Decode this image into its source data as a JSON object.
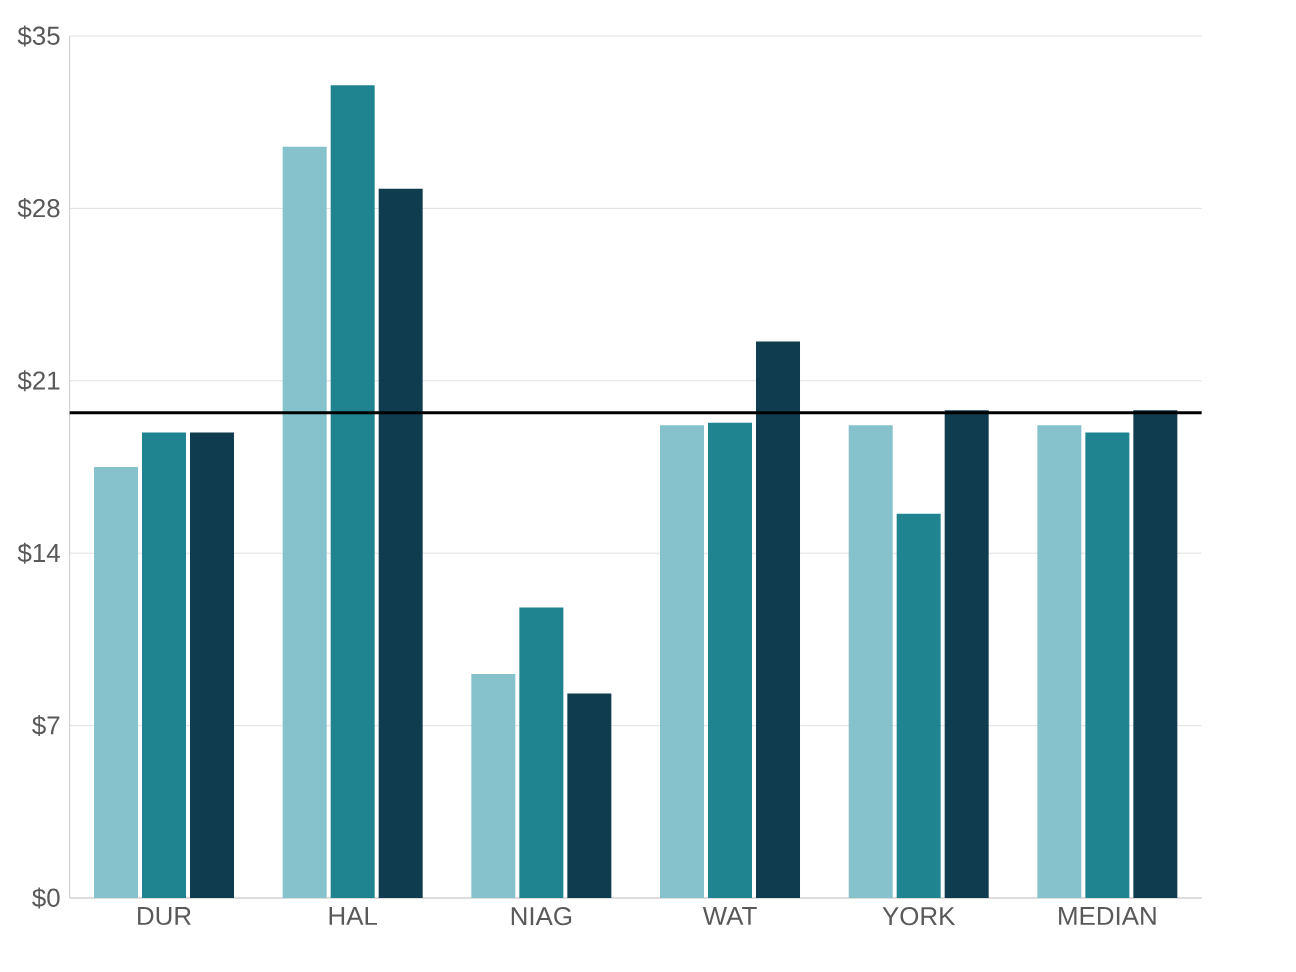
{
  "chart_data": {
    "type": "bar",
    "categories": [
      "DUR",
      "HAL",
      "NIAG",
      "WAT",
      "YORK",
      "MEDIAN"
    ],
    "series": [
      {
        "color": "#85c2cc",
        "values": [
          17.5,
          30.5,
          9.1,
          19.2,
          19.2,
          19.2
        ]
      },
      {
        "color": "#1f8490",
        "values": [
          18.9,
          33.0,
          11.8,
          19.3,
          15.6,
          18.9
        ]
      },
      {
        "color": "#0f3d4f",
        "values": [
          18.9,
          28.8,
          8.3,
          22.6,
          19.8,
          19.8
        ]
      }
    ],
    "ylim": [
      0,
      35
    ],
    "yticks": [
      {
        "value": 0,
        "label": "$0"
      },
      {
        "value": 7,
        "label": "$7"
      },
      {
        "value": 14,
        "label": "$14"
      },
      {
        "value": 21,
        "label": "$21"
      },
      {
        "value": 28,
        "label": "$28"
      },
      {
        "value": 35,
        "label": "$35"
      }
    ],
    "grid": "y",
    "ref_lines": [
      {
        "axis": "y",
        "value": 19.7,
        "color": "#000000"
      }
    ]
  }
}
